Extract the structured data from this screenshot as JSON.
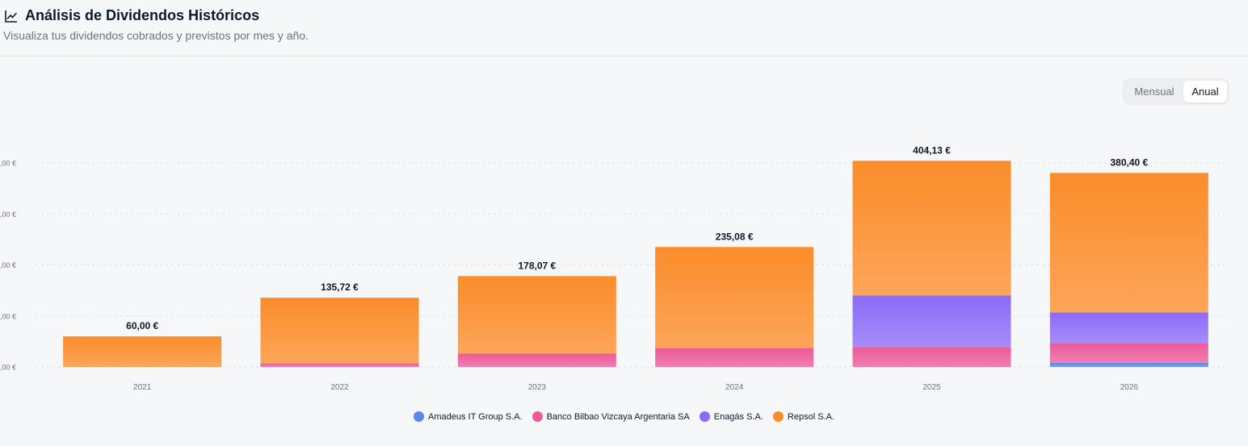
{
  "header": {
    "title": "Análisis de Dividendos Históricos",
    "subtitle": "Visualiza tus dividendos cobrados y previstos por mes y año.",
    "icon": "line-chart-icon"
  },
  "toggle": {
    "monthly_label": "Mensual",
    "annual_label": "Anual",
    "selected": "Anual"
  },
  "chart_data": {
    "type": "bar",
    "stacked": true,
    "categories": [
      "2021",
      "2022",
      "2023",
      "2024",
      "2025",
      "2026"
    ],
    "series": [
      {
        "name": "Amadeus IT Group S.A.",
        "color": "#5b86e5",
        "values": [
          0,
          0,
          0,
          0,
          0,
          8
        ]
      },
      {
        "name": "Banco Bilbao Vizcaya Argentaria SA",
        "color": "#ec5a9a",
        "values": [
          0,
          7,
          26,
          37,
          39,
          39
        ]
      },
      {
        "name": "Enagás S.A.",
        "color": "#8b6cf7",
        "values": [
          0,
          0,
          0,
          0,
          101,
          60
        ]
      },
      {
        "name": "Repsol S.A.",
        "color": "#fb8c2a",
        "values": [
          60,
          128.72,
          152.07,
          198.08,
          264.13,
          273.4
        ]
      }
    ],
    "totals_labels": [
      "60,00 €",
      "135,72 €",
      "178,07 €",
      "235,08 €",
      "404,13 €",
      "380,40 €"
    ],
    "y_ticks": [
      0,
      100,
      200,
      300,
      400
    ],
    "y_tick_labels": [
      ",00 €",
      ",00 €",
      ",00 €",
      ",00 €",
      ",00 €"
    ],
    "ylim": [
      0,
      400
    ],
    "grid": true,
    "legend_position": "bottom"
  }
}
